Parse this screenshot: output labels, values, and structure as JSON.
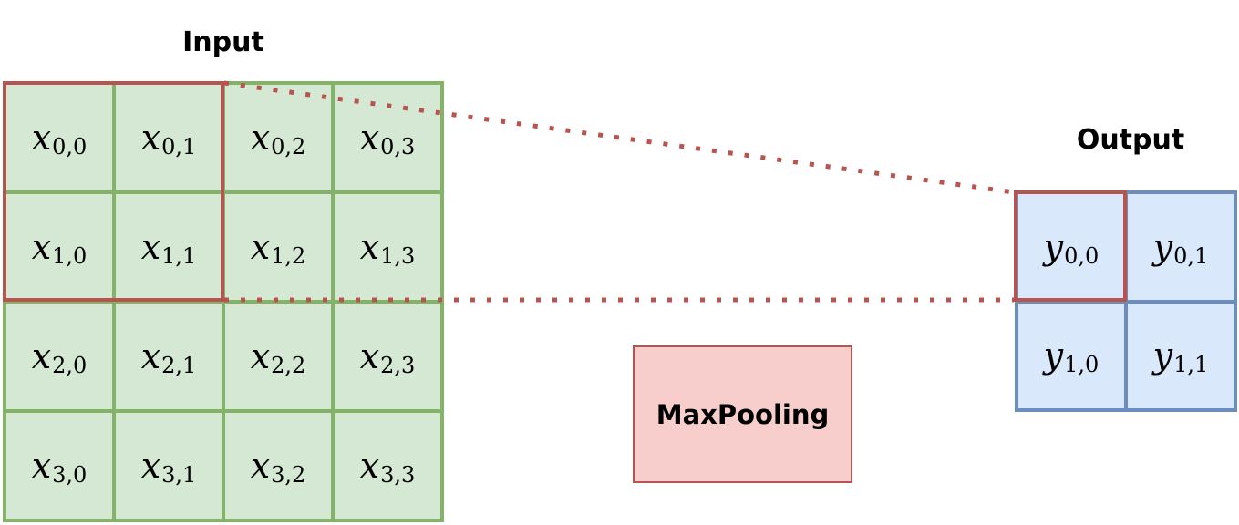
{
  "input": {
    "title": "Input",
    "var": "x",
    "cells": [
      [
        "0,0",
        "0,1",
        "0,2",
        "0,3"
      ],
      [
        "1,0",
        "1,1",
        "1,2",
        "1,3"
      ],
      [
        "2,0",
        "2,1",
        "2,2",
        "2,3"
      ],
      [
        "3,0",
        "3,1",
        "3,2",
        "3,3"
      ]
    ]
  },
  "output": {
    "title": "Output",
    "var": "y",
    "cells": [
      [
        "0,0",
        "0,1"
      ],
      [
        "1,0",
        "1,1"
      ]
    ]
  },
  "operation": {
    "label": "MaxPooling"
  },
  "colors": {
    "input_fill": "#d5e8d4",
    "input_stroke": "#82b366",
    "output_fill": "#dae8fc",
    "output_stroke": "#6c8ebf",
    "highlight_stroke": "#b85450",
    "op_fill": "#f8cecc"
  }
}
